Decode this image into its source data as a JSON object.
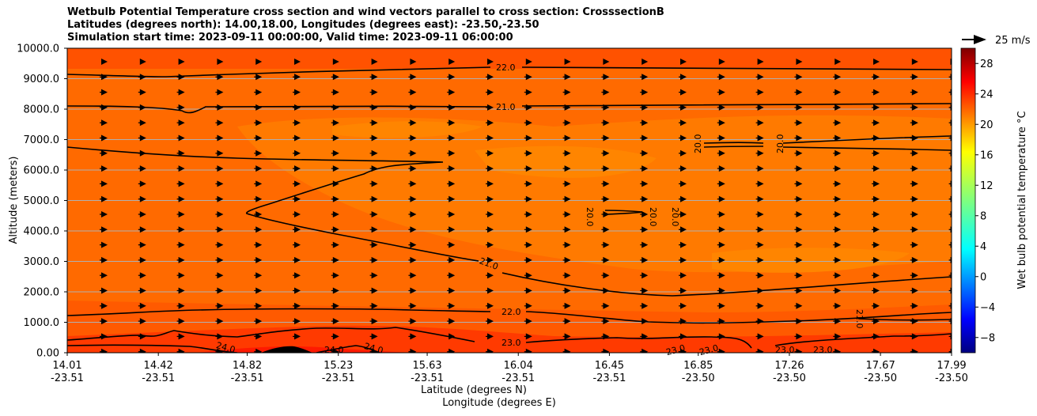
{
  "title_lines": [
    "Wetbulb Potential Temperature cross section and wind vectors parallel to cross section: CrosssectionB",
    "Latitudes (degrees north): 14.00,18.00, Longitudes (degrees east): -23.50,-23.50",
    "Simulation start time: 2023-09-11 00:00:00, Valid time: 2023-09-11 06:00:00"
  ],
  "chart_data": {
    "type": "contour",
    "ylabel": "Altitude (meters)",
    "xlabel_lat": "Latitude (degrees N)",
    "xlabel_lon": "Longitude (degrees E)",
    "ylim": [
      0,
      10000
    ],
    "y_ticks": [
      "0.00",
      "1000.0",
      "2000.0",
      "3000.0",
      "4000.0",
      "5000.0",
      "6000.0",
      "7000.0",
      "8000.0",
      "9000.0",
      "10000.0"
    ],
    "x_ticks": [
      {
        "lat": "14.01",
        "lon": "-23.51"
      },
      {
        "lat": "14.42",
        "lon": "-23.51"
      },
      {
        "lat": "14.82",
        "lon": "-23.51"
      },
      {
        "lat": "15.23",
        "lon": "-23.51"
      },
      {
        "lat": "15.63",
        "lon": "-23.51"
      },
      {
        "lat": "16.04",
        "lon": "-23.51"
      },
      {
        "lat": "16.45",
        "lon": "-23.51"
      },
      {
        "lat": "16.85",
        "lon": "-23.50"
      },
      {
        "lat": "17.26",
        "lon": "-23.50"
      },
      {
        "lat": "17.67",
        "lon": "-23.50"
      },
      {
        "lat": "17.99",
        "lon": "-23.50"
      }
    ],
    "grid": true,
    "colorbar": {
      "label": "Wet bulb potential temperature $^\\circ$C",
      "range": [
        -10,
        30
      ],
      "ticks": [
        "-8",
        "-4",
        "0",
        "4",
        "8",
        "12",
        "16",
        "20",
        "24",
        "28"
      ],
      "colormap": "jet"
    },
    "quiver_key": "25 m/s",
    "contour_labels": [
      "22.0",
      "21.0",
      "20.0",
      "20.0",
      "20.0",
      "20.0",
      "20.0",
      "21.0",
      "22.0",
      "23.0",
      "24.0",
      "24.0",
      "24.0",
      "23.0",
      "23.0",
      "23.0",
      "23.0",
      "21.0"
    ],
    "colors": {
      "fill_main": "#ff6a00",
      "fill_warm": "#ff4d00",
      "fill_light": "#ff8200",
      "fill_surface": "#ff2a00",
      "contour": "#000000"
    }
  }
}
